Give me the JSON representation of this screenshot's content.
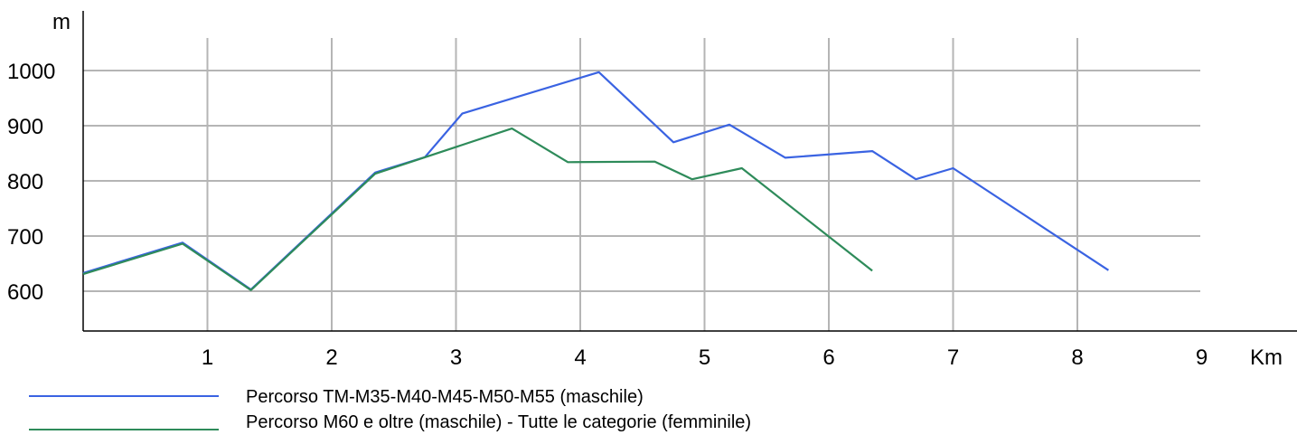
{
  "chart_data": {
    "type": "line",
    "xlabel": "Km",
    "ylabel": "m",
    "xlim": [
      0,
      9
    ],
    "ylim": [
      530,
      1120
    ],
    "x_ticks": [
      1,
      2,
      3,
      4,
      5,
      6,
      7,
      8,
      9
    ],
    "y_ticks": [
      600,
      700,
      800,
      900,
      1000
    ],
    "grid": true,
    "legend_position": "bottom-left",
    "series": [
      {
        "name": "Percorso TM-M35-M40-M45-M50-M55 (maschile)",
        "color": "#3a63e2",
        "points": [
          [
            0,
            633
          ],
          [
            0.8,
            688
          ],
          [
            1.35,
            603
          ],
          [
            2.35,
            815
          ],
          [
            2.75,
            843
          ],
          [
            3.05,
            922
          ],
          [
            4.15,
            997
          ],
          [
            4.75,
            870
          ],
          [
            5.2,
            902
          ],
          [
            5.65,
            842
          ],
          [
            6.35,
            854
          ],
          [
            6.7,
            803
          ],
          [
            7.0,
            823
          ],
          [
            8.25,
            638
          ]
        ]
      },
      {
        "name": "Percorso M60 e oltre (maschile) - Tutte le categorie (femminile)",
        "color": "#2e8b5a",
        "points": [
          [
            0,
            631
          ],
          [
            0.8,
            686
          ],
          [
            1.35,
            602
          ],
          [
            2.35,
            813
          ],
          [
            3.45,
            895
          ],
          [
            3.9,
            834
          ],
          [
            4.6,
            835
          ],
          [
            4.9,
            803
          ],
          [
            5.3,
            823
          ],
          [
            6.35,
            637
          ]
        ]
      }
    ]
  }
}
